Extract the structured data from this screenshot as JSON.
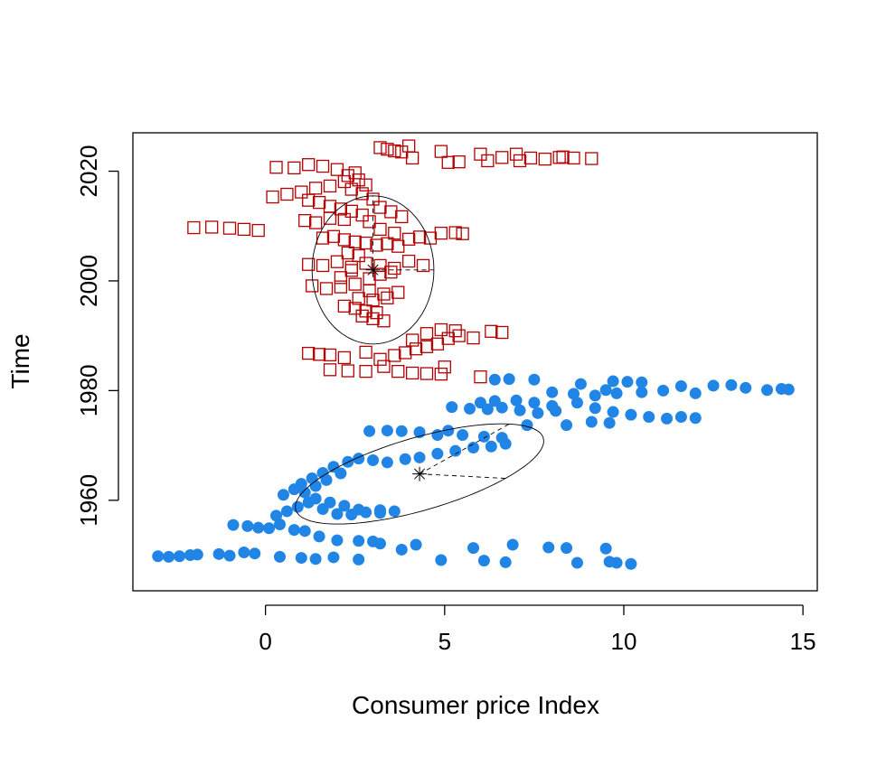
{
  "chart_data": {
    "type": "scatter",
    "xlabel": "Consumer price Index",
    "ylabel": "Time",
    "xlim": [
      -3.7,
      15.4
    ],
    "ylim": [
      1943.5,
      2027
    ],
    "x_ticks": [
      0,
      5,
      10,
      15
    ],
    "y_ticks": [
      1960,
      1980,
      2000,
      2020
    ],
    "grid": false,
    "colors": {
      "early": "#2185e6",
      "late": "#b30000",
      "ellipse": "#000000"
    },
    "series": [
      {
        "marker": "filled-circle",
        "color": "#2185e6",
        "points": [
          [
            -3.0,
            1949.8
          ],
          [
            -2.7,
            1949.7
          ],
          [
            -2.4,
            1949.8
          ],
          [
            -2.1,
            1950.0
          ],
          [
            -1.9,
            1950.1
          ],
          [
            -1.3,
            1950.2
          ],
          [
            -1.0,
            1949.9
          ],
          [
            -0.6,
            1950.5
          ],
          [
            -0.3,
            1950.3
          ],
          [
            0.4,
            1949.7
          ],
          [
            1.0,
            1949.5
          ],
          [
            1.4,
            1949.3
          ],
          [
            1.9,
            1949.6
          ],
          [
            2.6,
            1949.2
          ],
          [
            3.8,
            1951.0
          ],
          [
            4.2,
            1951.9
          ],
          [
            4.9,
            1949.1
          ],
          [
            5.8,
            1951.3
          ],
          [
            6.1,
            1949.0
          ],
          [
            6.7,
            1948.7
          ],
          [
            6.9,
            1951.9
          ],
          [
            7.9,
            1951.4
          ],
          [
            8.4,
            1951.3
          ],
          [
            8.7,
            1948.6
          ],
          [
            9.5,
            1951.2
          ],
          [
            9.6,
            1948.8
          ],
          [
            9.8,
            1948.6
          ],
          [
            10.2,
            1948.4
          ],
          [
            -0.9,
            1955.5
          ],
          [
            -0.5,
            1955.3
          ],
          [
            -0.2,
            1955.0
          ],
          [
            0.1,
            1954.9
          ],
          [
            0.4,
            1955.6
          ],
          [
            0.8,
            1954.6
          ],
          [
            1.1,
            1954.4
          ],
          [
            1.5,
            1953.4
          ],
          [
            2.0,
            1952.7
          ],
          [
            2.6,
            1952.6
          ],
          [
            3.0,
            1952.5
          ],
          [
            3.2,
            1952.1
          ],
          [
            0.3,
            1957.2
          ],
          [
            0.6,
            1958.0
          ],
          [
            0.9,
            1958.8
          ],
          [
            1.2,
            1959.6
          ],
          [
            1.6,
            1958.4
          ],
          [
            2.0,
            1957.5
          ],
          [
            2.4,
            1957.4
          ],
          [
            2.8,
            1957.8
          ],
          [
            3.2,
            1958.2
          ],
          [
            3.6,
            1958.0
          ],
          [
            0.5,
            1961.0
          ],
          [
            0.8,
            1962.0
          ],
          [
            1.0,
            1963.0
          ],
          [
            1.3,
            1964.0
          ],
          [
            1.6,
            1965.0
          ],
          [
            1.9,
            1966.1
          ],
          [
            1.1,
            1961.4
          ],
          [
            1.4,
            1962.6
          ],
          [
            1.7,
            1963.7
          ],
          [
            2.1,
            1964.9
          ],
          [
            1.4,
            1960.3
          ],
          [
            1.8,
            1959.6
          ],
          [
            2.2,
            1959.0
          ],
          [
            2.6,
            1958.3
          ],
          [
            3.2,
            1957.7
          ],
          [
            2.3,
            1967.0
          ],
          [
            2.6,
            1967.6
          ],
          [
            3.0,
            1967.3
          ],
          [
            3.4,
            1966.9
          ],
          [
            3.9,
            1967.5
          ],
          [
            4.3,
            1967.8
          ],
          [
            4.8,
            1968.5
          ],
          [
            5.3,
            1969.0
          ],
          [
            5.8,
            1969.6
          ],
          [
            6.3,
            1969.8
          ],
          [
            6.7,
            1970.3
          ],
          [
            2.9,
            1972.6
          ],
          [
            3.4,
            1972.7
          ],
          [
            3.8,
            1972.6
          ],
          [
            4.3,
            1972.4
          ],
          [
            4.8,
            1971.9
          ],
          [
            5.1,
            1972.7
          ],
          [
            5.5,
            1971.9
          ],
          [
            6.1,
            1971.6
          ],
          [
            6.6,
            1971.4
          ],
          [
            7.3,
            1973.7
          ],
          [
            5.2,
            1977.0
          ],
          [
            5.7,
            1976.7
          ],
          [
            6.2,
            1976.6
          ],
          [
            6.6,
            1976.9
          ],
          [
            7.1,
            1976.4
          ],
          [
            7.6,
            1975.9
          ],
          [
            8.1,
            1976.3
          ],
          [
            8.7,
            1977.8
          ],
          [
            9.2,
            1976.8
          ],
          [
            9.7,
            1976.1
          ],
          [
            10.2,
            1975.6
          ],
          [
            10.7,
            1975.2
          ],
          [
            11.2,
            1974.9
          ],
          [
            11.6,
            1975.2
          ],
          [
            12.0,
            1975.0
          ],
          [
            6.0,
            1977.8
          ],
          [
            6.4,
            1978.1
          ],
          [
            7.0,
            1978.2
          ],
          [
            7.5,
            1977.8
          ],
          [
            8.0,
            1977.2
          ],
          [
            8.4,
            1973.7
          ],
          [
            9.1,
            1974.3
          ],
          [
            9.6,
            1974.1
          ],
          [
            6.4,
            1982.0
          ],
          [
            6.8,
            1982.1
          ],
          [
            7.5,
            1982.0
          ],
          [
            8.0,
            1979.7
          ],
          [
            8.6,
            1979.4
          ],
          [
            9.2,
            1979.1
          ],
          [
            9.5,
            1980.1
          ],
          [
            9.7,
            1981.7
          ],
          [
            10.1,
            1981.6
          ],
          [
            10.5,
            1979.7
          ],
          [
            11.1,
            1980.0
          ],
          [
            11.6,
            1980.8
          ],
          [
            12.0,
            1979.5
          ],
          [
            12.5,
            1980.9
          ],
          [
            13.0,
            1981.0
          ],
          [
            13.4,
            1980.5
          ],
          [
            14.0,
            1980.1
          ],
          [
            14.4,
            1980.3
          ],
          [
            14.6,
            1980.2
          ],
          [
            8.8,
            1981.2
          ],
          [
            9.8,
            1979.5
          ],
          [
            10.5,
            1981.5
          ]
        ]
      },
      {
        "marker": "open-square",
        "color": "#b30000",
        "points": [
          [
            -2.0,
            2009.7
          ],
          [
            -1.5,
            2009.8
          ],
          [
            -1.0,
            2009.6
          ],
          [
            -0.6,
            2009.4
          ],
          [
            -0.2,
            2009.2
          ],
          [
            0.2,
            2015.3
          ],
          [
            0.6,
            2015.8
          ],
          [
            1.0,
            2016.2
          ],
          [
            0.3,
            2020.7
          ],
          [
            0.8,
            2020.6
          ],
          [
            1.2,
            2021.2
          ],
          [
            1.6,
            2020.9
          ],
          [
            2.0,
            2020.3
          ],
          [
            2.3,
            2019.2
          ],
          [
            2.6,
            2018.4
          ],
          [
            2.8,
            2017.5
          ],
          [
            1.4,
            2016.9
          ],
          [
            1.8,
            2017.3
          ],
          [
            2.2,
            2018.1
          ],
          [
            2.5,
            2019.7
          ],
          [
            1.2,
            2014.7
          ],
          [
            1.5,
            2014.3
          ],
          [
            1.8,
            2013.6
          ],
          [
            2.1,
            2013.1
          ],
          [
            2.4,
            2012.7
          ],
          [
            2.7,
            2012.0
          ],
          [
            1.1,
            2011.0
          ],
          [
            1.4,
            2010.6
          ],
          [
            1.8,
            2011.4
          ],
          [
            2.2,
            2011.2
          ],
          [
            1.6,
            2007.8
          ],
          [
            1.9,
            2008.1
          ],
          [
            2.2,
            2007.5
          ],
          [
            2.5,
            2007.1
          ],
          [
            2.8,
            2006.9
          ],
          [
            3.1,
            2006.5
          ],
          [
            3.4,
            2006.8
          ],
          [
            3.7,
            2006.3
          ],
          [
            4.0,
            2007.6
          ],
          [
            4.3,
            2008.0
          ],
          [
            4.6,
            2007.8
          ],
          [
            4.9,
            2008.7
          ],
          [
            5.3,
            2008.8
          ],
          [
            5.5,
            2008.6
          ],
          [
            1.2,
            2003.0
          ],
          [
            1.6,
            2002.8
          ],
          [
            2.0,
            2003.5
          ],
          [
            2.4,
            2002.5
          ],
          [
            2.8,
            2003.2
          ],
          [
            3.2,
            2002.8
          ],
          [
            3.6,
            2002.3
          ],
          [
            4.0,
            2003.6
          ],
          [
            4.4,
            2002.8
          ],
          [
            1.3,
            1999.1
          ],
          [
            1.7,
            1998.6
          ],
          [
            2.1,
            1998.9
          ],
          [
            2.5,
            1999.4
          ],
          [
            2.9,
            1998.2
          ],
          [
            3.3,
            1997.6
          ],
          [
            3.7,
            1997.9
          ],
          [
            2.2,
            1995.4
          ],
          [
            2.5,
            1995.0
          ],
          [
            2.8,
            1994.5
          ],
          [
            3.1,
            1994.2
          ],
          [
            2.7,
            1993.6
          ],
          [
            3.0,
            1993.1
          ],
          [
            3.3,
            1992.7
          ],
          [
            2.6,
            1996.8
          ],
          [
            3.0,
            1996.5
          ],
          [
            3.4,
            1996.9
          ],
          [
            1.2,
            1986.8
          ],
          [
            1.5,
            1986.6
          ],
          [
            1.8,
            1986.5
          ],
          [
            2.2,
            1986.0
          ],
          [
            2.8,
            1987.0
          ],
          [
            3.2,
            1985.7
          ],
          [
            3.6,
            1986.4
          ],
          [
            3.9,
            1986.9
          ],
          [
            4.2,
            1987.6
          ],
          [
            4.5,
            1988.0
          ],
          [
            4.8,
            1988.5
          ],
          [
            5.1,
            1989.5
          ],
          [
            5.4,
            1990.0
          ],
          [
            5.8,
            1989.6
          ],
          [
            6.3,
            1990.8
          ],
          [
            6.6,
            1990.6
          ],
          [
            4.5,
            1990.4
          ],
          [
            4.9,
            1991.1
          ],
          [
            5.3,
            1990.9
          ],
          [
            4.1,
            1989.2
          ],
          [
            1.8,
            1983.8
          ],
          [
            2.3,
            1983.6
          ],
          [
            2.8,
            1983.5
          ],
          [
            3.3,
            1984.4
          ],
          [
            3.7,
            1983.5
          ],
          [
            4.1,
            1983.2
          ],
          [
            4.5,
            1983.1
          ],
          [
            4.9,
            1983.0
          ],
          [
            5.0,
            1984.3
          ],
          [
            6.0,
            1982.5
          ],
          [
            3.2,
            2024.3
          ],
          [
            3.4,
            2024.0
          ],
          [
            3.6,
            2023.7
          ],
          [
            3.8,
            2023.5
          ],
          [
            4.0,
            2024.6
          ],
          [
            4.1,
            2022.4
          ],
          [
            4.9,
            2023.6
          ],
          [
            5.1,
            2021.6
          ],
          [
            5.4,
            2021.7
          ],
          [
            6.0,
            2023.1
          ],
          [
            6.2,
            2021.9
          ],
          [
            6.6,
            2022.5
          ],
          [
            7.0,
            2023.1
          ],
          [
            7.1,
            2021.9
          ],
          [
            7.4,
            2022.4
          ],
          [
            7.8,
            2022.2
          ],
          [
            8.2,
            2022.5
          ],
          [
            8.3,
            2022.6
          ],
          [
            8.6,
            2022.4
          ],
          [
            9.1,
            2022.3
          ],
          [
            2.4,
            2016.7
          ],
          [
            2.7,
            2015.9
          ],
          [
            3.0,
            2014.9
          ],
          [
            3.2,
            2013.4
          ],
          [
            3.5,
            2012.6
          ],
          [
            3.8,
            2011.7
          ],
          [
            2.9,
            2010.8
          ],
          [
            3.2,
            2009.4
          ],
          [
            3.6,
            2008.7
          ],
          [
            2.9,
            2000.4
          ],
          [
            3.2,
            2001.2
          ],
          [
            3.5,
            2001.6
          ],
          [
            2.1,
            2000.6
          ],
          [
            2.4,
            2001.9
          ],
          [
            2.3,
            2005.1
          ],
          [
            2.6,
            2004.6
          ]
        ]
      }
    ],
    "ellipses": [
      {
        "center": [
          4.3,
          1964.8
        ],
        "axes": [
          [
            6.8,
            1973.9
          ],
          [
            6.7,
            1964.0
          ]
        ]
      },
      {
        "center": [
          3.0,
          2002.0
        ],
        "axes": [
          [
            3.0,
            2015.5
          ],
          [
            4.7,
            2002.0
          ]
        ]
      }
    ]
  }
}
